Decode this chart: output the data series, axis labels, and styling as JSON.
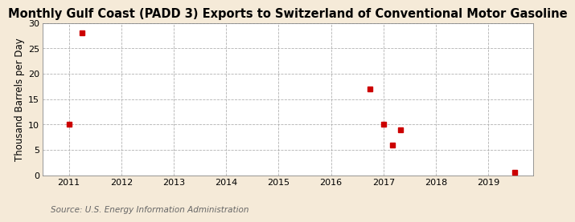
{
  "title": "Monthly Gulf Coast (PADD 3) Exports to Switzerland of Conventional Motor Gasoline",
  "ylabel": "Thousand Barrels per Day",
  "source": "Source: U.S. Energy Information Administration",
  "fig_bg_color": "#f5ead8",
  "plot_bg_color": "#ffffff",
  "marker_color": "#cc0000",
  "marker_size": 4,
  "xlim": [
    2010.5,
    2019.85
  ],
  "ylim": [
    0,
    30
  ],
  "yticks": [
    0,
    5,
    10,
    15,
    20,
    25,
    30
  ],
  "xticks": [
    2011,
    2012,
    2013,
    2014,
    2015,
    2016,
    2017,
    2018,
    2019
  ],
  "data_x": [
    2011.0,
    2011.25,
    2016.75,
    2017.0,
    2017.17,
    2017.33,
    2019.5
  ],
  "data_y": [
    10.0,
    28.0,
    17.0,
    10.0,
    6.0,
    9.0,
    0.5
  ],
  "title_fontsize": 10.5,
  "axis_fontsize": 8.5,
  "tick_fontsize": 8,
  "source_fontsize": 7.5,
  "grid_color": "#aaaaaa",
  "spine_color": "#888888"
}
